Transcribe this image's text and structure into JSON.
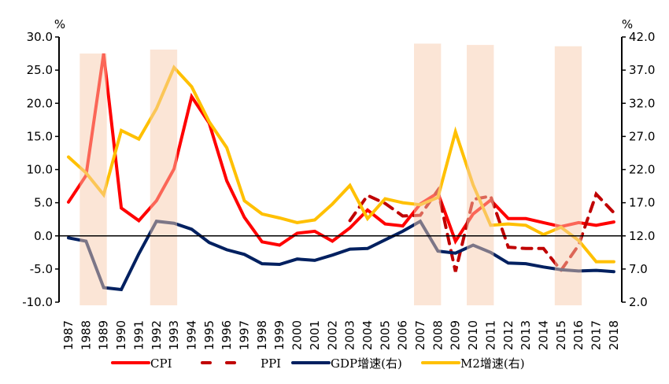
{
  "chart_data": {
    "type": "line",
    "title": "",
    "xlabel": "",
    "ylabel": "%",
    "ylabel_right": "%",
    "ylim": [
      -10,
      30
    ],
    "ylim_right": [
      2,
      42
    ],
    "yticks": [
      "30.0",
      "25.0",
      "20.0",
      "15.0",
      "10.0",
      "5.0",
      "0.0",
      "-5.0",
      "-10.0"
    ],
    "yticks_right": [
      "42.0",
      "37.0",
      "32.0",
      "27.0",
      "22.0",
      "17.0",
      "12.0",
      "7.0",
      "2.0"
    ],
    "grid": false,
    "legend_position": "bottom",
    "x": [
      "1987",
      "1988",
      "1989",
      "1990",
      "1991",
      "1992",
      "1993",
      "1994",
      "1995",
      "1996",
      "1997",
      "1998",
      "1999",
      "2000",
      "2001",
      "2002",
      "2003",
      "2004",
      "2005",
      "2006",
      "2007",
      "2008",
      "2009",
      "2010",
      "2011",
      "2012",
      "2013",
      "2014",
      "2015",
      "2016",
      "2017",
      "2018"
    ],
    "shaded_periods": [
      [
        "1988",
        "1989"
      ],
      [
        "1992",
        "1993"
      ],
      [
        "2007",
        "2008"
      ],
      [
        "2010",
        "2011"
      ],
      [
        "2015",
        "2016"
      ]
    ],
    "series": [
      {
        "name": "CPI",
        "axis": "left",
        "style": "solid",
        "color": "#FF0000",
        "values": [
          5.1,
          9.1,
          27.5,
          4.2,
          2.3,
          5.3,
          10.1,
          21.0,
          17.0,
          8.3,
          2.8,
          -0.9,
          -1.4,
          0.4,
          0.7,
          -0.8,
          1.2,
          3.9,
          1.8,
          1.5,
          4.8,
          6.5,
          -0.8,
          3.3,
          5.4,
          2.6,
          2.6,
          2.0,
          1.4,
          2.0,
          1.6,
          2.1
        ]
      },
      {
        "name": "PPI",
        "axis": "left",
        "style": "dashed",
        "color": "#C00000",
        "values": [
          null,
          null,
          null,
          null,
          null,
          null,
          null,
          null,
          null,
          null,
          null,
          null,
          null,
          null,
          null,
          null,
          2.3,
          6.1,
          4.9,
          3.0,
          3.1,
          6.9,
          -5.4,
          5.5,
          6.0,
          -1.7,
          -1.9,
          -1.9,
          -5.2,
          -1.4,
          6.3,
          3.5
        ]
      },
      {
        "name": "GDP增速(右)",
        "axis": "right",
        "style": "solid",
        "color": "#002060",
        "values": [
          11.7,
          11.2,
          4.2,
          3.9,
          9.3,
          14.2,
          13.9,
          13.0,
          11.0,
          9.9,
          9.2,
          7.8,
          7.7,
          8.5,
          8.3,
          9.1,
          10.0,
          10.1,
          11.4,
          12.7,
          14.2,
          9.7,
          9.4,
          10.6,
          9.5,
          7.9,
          7.8,
          7.3,
          6.9,
          6.7,
          6.8,
          6.6
        ]
      },
      {
        "name": "M2增速(右)",
        "axis": "right",
        "style": "solid",
        "color": "#FFC000",
        "values": [
          23.9,
          21.5,
          18.2,
          27.9,
          26.6,
          31.2,
          37.4,
          34.5,
          29.2,
          25.3,
          17.3,
          15.3,
          14.7,
          14.0,
          14.4,
          16.8,
          19.6,
          14.6,
          17.6,
          17.0,
          16.7,
          17.8,
          27.7,
          19.7,
          13.6,
          13.8,
          13.6,
          12.2,
          13.3,
          11.3,
          8.1,
          8.1
        ]
      }
    ]
  }
}
